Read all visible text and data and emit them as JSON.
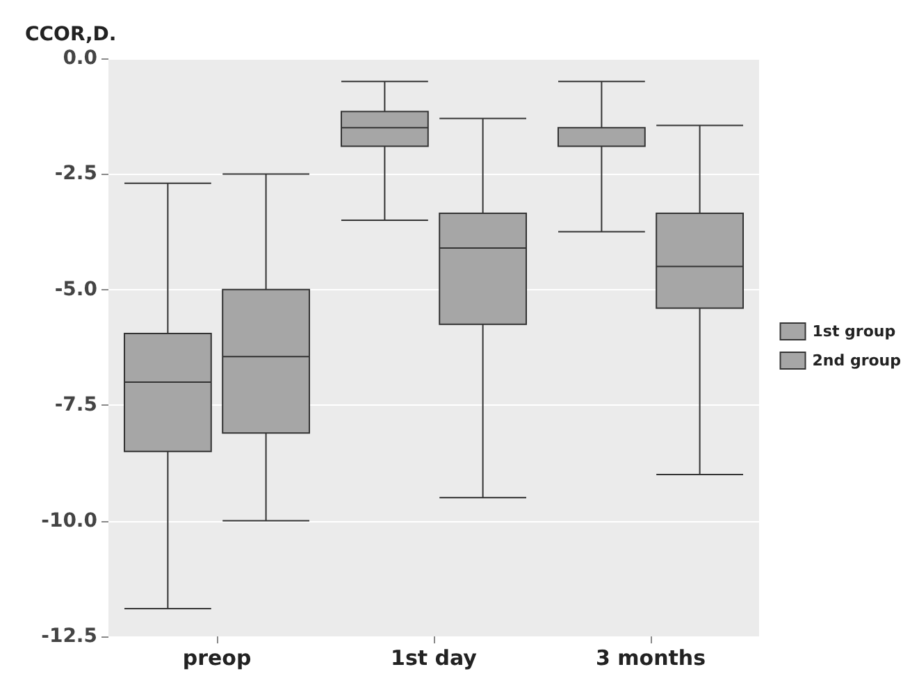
{
  "chart_data": {
    "type": "box",
    "ylabel": "CCOR,D.",
    "categories": [
      "preop",
      "1st day",
      "3 months"
    ],
    "series": [
      {
        "name": "1st group",
        "color": "#a6a6a6",
        "boxes": [
          {
            "low": -11.9,
            "q1": -8.5,
            "median": -7.0,
            "q3": -5.95,
            "high": -2.7
          },
          {
            "low": -3.5,
            "q1": -1.9,
            "median": -1.5,
            "q3": -1.15,
            "high": -0.5
          },
          {
            "low": -3.75,
            "q1": -1.9,
            "median": -1.5,
            "q3": -1.5,
            "high": -0.5
          }
        ]
      },
      {
        "name": "2nd group",
        "color": "#a6a6a6",
        "boxes": [
          {
            "low": -10.0,
            "q1": -8.1,
            "median": -6.45,
            "q3": -5.0,
            "high": -2.5
          },
          {
            "low": -9.5,
            "q1": -5.75,
            "median": -4.1,
            "q3": -3.35,
            "high": -1.3
          },
          {
            "low": -9.0,
            "q1": -5.4,
            "median": -4.5,
            "q3": -3.35,
            "high": -1.45
          }
        ]
      }
    ],
    "ylim": [
      -12.5,
      0
    ],
    "yticks": [
      {
        "value": -12.5,
        "label": "-12.5"
      },
      {
        "value": -10,
        "label": "-10.0"
      },
      {
        "value": -7.5,
        "label": "-7.5"
      },
      {
        "value": -5,
        "label": "-5.0"
      },
      {
        "value": -2.5,
        "label": "-2.5"
      },
      {
        "value": 0,
        "label": "0.0"
      }
    ],
    "grid": "y",
    "legend": "right"
  }
}
